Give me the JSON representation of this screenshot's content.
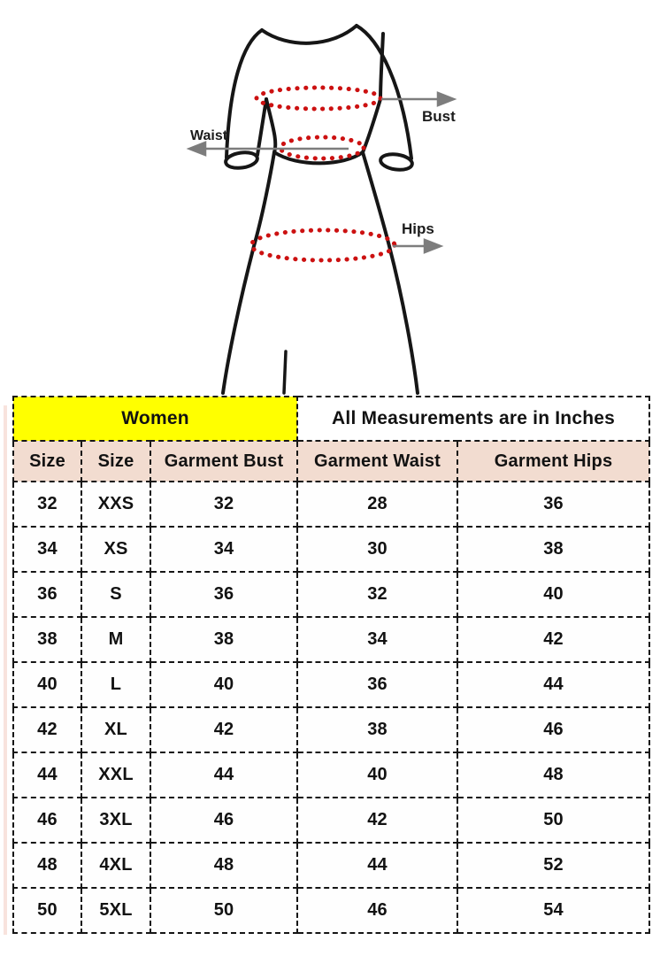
{
  "diagram": {
    "bust_label": "Bust",
    "waist_label": "Waist",
    "hips_label": "Hips",
    "colors": {
      "dress_outline": "#161616",
      "measurement_dots": "#cc1111",
      "arrow_gray": "#7d7d7d",
      "label_text": "#1c1c1c"
    }
  },
  "table": {
    "group_header": {
      "women_label": "Women",
      "units_label": "All Measurements are in Inches",
      "women_bg": "#ffff00"
    },
    "columns": [
      "Size",
      "Size",
      "Garment Bust",
      "Garment Waist",
      "Garment Hips"
    ],
    "header_bg": "#f2dcd0",
    "rows": [
      [
        "32",
        "XXS",
        "32",
        "28",
        "36"
      ],
      [
        "34",
        "XS",
        "34",
        "30",
        "38"
      ],
      [
        "36",
        "S",
        "36",
        "32",
        "40"
      ],
      [
        "38",
        "M",
        "38",
        "34",
        "42"
      ],
      [
        "40",
        "L",
        "40",
        "36",
        "44"
      ],
      [
        "42",
        "XL",
        "42",
        "38",
        "46"
      ],
      [
        "44",
        "XXL",
        "44",
        "40",
        "48"
      ],
      [
        "46",
        "3XL",
        "46",
        "42",
        "50"
      ],
      [
        "48",
        "4XL",
        "48",
        "44",
        "52"
      ],
      [
        "50",
        "5XL",
        "50",
        "46",
        "54"
      ]
    ]
  }
}
